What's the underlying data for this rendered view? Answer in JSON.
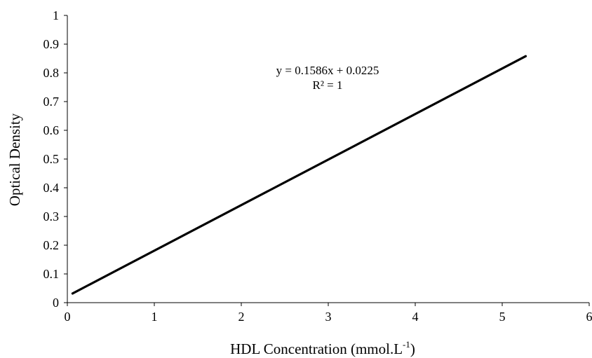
{
  "chart_data": {
    "type": "line",
    "title": "",
    "xlabel": "HDL Concentration (mmol.L",
    "xlabel_superscript": "-1",
    "xlabel_suffix": ")",
    "ylabel": "Optical Density",
    "xlim": [
      0,
      6
    ],
    "ylim": [
      0,
      1
    ],
    "x_ticks": [
      "0",
      "1",
      "2",
      "3",
      "4",
      "5",
      "6"
    ],
    "y_ticks": [
      "0",
      "0.1",
      "0.2",
      "0.3",
      "0.4",
      "0.5",
      "0.6",
      "0.7",
      "0.8",
      "0.9",
      "1"
    ],
    "grid": false,
    "legend": "none",
    "series": [
      {
        "x": [
          0.06,
          5.27
        ],
        "y": [
          0.032,
          0.858
        ],
        "color": "#000000"
      }
    ],
    "trendline": {
      "equation": "y = 0.1586x + 0.0225",
      "r_squared": "R² = 1"
    }
  }
}
